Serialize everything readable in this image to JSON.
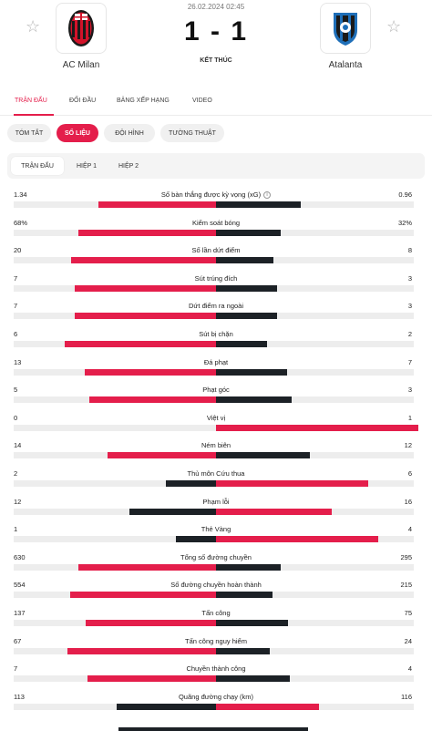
{
  "match": {
    "date": "26.02.2024 02:45",
    "score": "1 - 1",
    "status": "KẾT THÚC",
    "home_team": "AC Milan",
    "away_team": "Atalanta"
  },
  "tabs": [
    "TRẬN ĐẤU",
    "ĐỐI ĐẦU",
    "BẢNG XẾP HẠNG",
    "VIDEO"
  ],
  "sub_tabs": [
    "TÓM TẮT",
    "SỐ LIỆU",
    "ĐỘI HÌNH",
    "TƯỜNG THUẬT"
  ],
  "periods": [
    "TRẬN ĐẤU",
    "HIỆP 1",
    "HIỆP 2"
  ],
  "colors": {
    "accent": "#e41e4b",
    "away_bar": "#1c2126",
    "track": "#ededed",
    "milan_red": "#d3132a",
    "atalanta_blue": "#1f6fb8"
  },
  "stats": [
    {
      "label": "Số bàn thắng được kỳ vọng (xG)",
      "home": "1.34",
      "away": "0.96",
      "home_share": 0.583,
      "away_share": 0.417,
      "info": true
    },
    {
      "label": "Kiểm soát bóng",
      "home": "68%",
      "away": "32%",
      "home_share": 0.68,
      "away_share": 0.32
    },
    {
      "label": "Số lần dứt điểm",
      "home": "20",
      "away": "8",
      "home_share": 0.714,
      "away_share": 0.286
    },
    {
      "label": "Sút trúng đích",
      "home": "7",
      "away": "3",
      "home_share": 0.7,
      "away_share": 0.3
    },
    {
      "label": "Dứt điểm ra ngoài",
      "home": "7",
      "away": "3",
      "home_share": 0.7,
      "away_share": 0.3
    },
    {
      "label": "Sút bị chặn",
      "home": "6",
      "away": "2",
      "home_share": 0.75,
      "away_share": 0.25
    },
    {
      "label": "Đá phạt",
      "home": "13",
      "away": "7",
      "home_share": 0.65,
      "away_share": 0.35
    },
    {
      "label": "Phạt góc",
      "home": "5",
      "away": "3",
      "home_share": 0.625,
      "away_share": 0.375
    },
    {
      "label": "Việt vị",
      "home": "0",
      "away": "1",
      "home_share": 0.0,
      "away_share": 1.0
    },
    {
      "label": "Ném biên",
      "home": "14",
      "away": "12",
      "home_share": 0.538,
      "away_share": 0.462
    },
    {
      "label": "Thủ môn Cứu thua",
      "home": "2",
      "away": "6",
      "home_share": 0.25,
      "away_share": 0.75
    },
    {
      "label": "Phạm lỗi",
      "home": "12",
      "away": "16",
      "home_share": 0.429,
      "away_share": 0.571
    },
    {
      "label": "Thẻ Vàng",
      "home": "1",
      "away": "4",
      "home_share": 0.2,
      "away_share": 0.8
    },
    {
      "label": "Tổng số đường chuyền",
      "home": "630",
      "away": "295",
      "home_share": 0.681,
      "away_share": 0.319
    },
    {
      "label": "Số đường chuyền hoàn thành",
      "home": "554",
      "away": "215",
      "home_share": 0.72,
      "away_share": 0.28
    },
    {
      "label": "Tấn công",
      "home": "137",
      "away": "75",
      "home_share": 0.646,
      "away_share": 0.354
    },
    {
      "label": "Tấn công nguy hiểm",
      "home": "67",
      "away": "24",
      "home_share": 0.736,
      "away_share": 0.264
    },
    {
      "label": "Chuyền thành công",
      "home": "7",
      "away": "4",
      "home_share": 0.636,
      "away_share": 0.364
    },
    {
      "label": "Quãng đường chạy (km)",
      "home": "113",
      "away": "116",
      "home_share": 0.493,
      "away_share": 0.507
    }
  ]
}
